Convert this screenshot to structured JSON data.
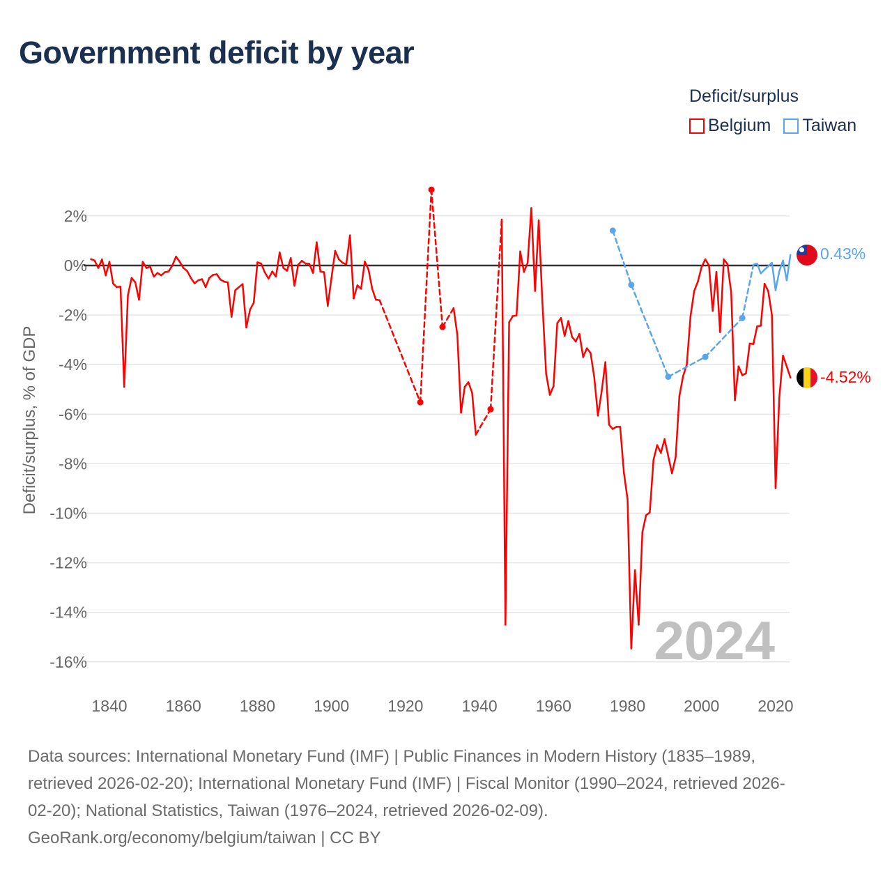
{
  "title": "Government deficit by year",
  "legend": {
    "title": "Deficit/surplus",
    "items": [
      {
        "label": "Belgium",
        "color": "#ff0000"
      },
      {
        "label": "Taiwan",
        "color": "#5aa5ec"
      }
    ]
  },
  "sources": [
    "Data sources: International Monetary Fund (IMF) | Public Finances in Modern History (1835–1989,",
    "retrieved 2026-02-20); International Monetary Fund (IMF) | Fiscal Monitor (1990–2024, retrieved 2026-",
    "02-20); National Statistics, Taiwan (1976–2024, retrieved 2026-02-09).",
    "GeoRank.org/economy/belgium/taiwan | CC BY"
  ],
  "chart_data": {
    "type": "line",
    "title": "Government deficit by year",
    "xlabel": "",
    "ylabel": "Deficit/surplus, % of GDP",
    "xlim": [
      1834.5,
      2028
    ],
    "ylim": [
      -17,
      3.5
    ],
    "x_ticks": [
      1840,
      1860,
      1880,
      1900,
      1920,
      1940,
      1960,
      1980,
      2000,
      2020
    ],
    "y_ticks": [
      2,
      0,
      -2,
      -4,
      -6,
      -8,
      -10,
      -12,
      -14,
      -16
    ],
    "y_tick_labels": [
      "2%",
      "0%",
      "-2%",
      "-4%",
      "-6%",
      "-8%",
      "-10%",
      "-12%",
      "-14%",
      "-16%"
    ],
    "x_tick_labels": [
      "1840",
      "1860",
      "1880",
      "1900",
      "1920",
      "1940",
      "1960",
      "1980",
      "2000",
      "2020"
    ],
    "grid": true,
    "year_watermark": "2024",
    "series": [
      {
        "name": "Belgium",
        "color": "#ff0000",
        "end_label": "-4.52%",
        "points": [
          [
            1835,
            0.26
          ],
          [
            1836,
            0.2
          ],
          [
            1837,
            -0.1
          ],
          [
            1838,
            0.25
          ],
          [
            1839,
            -0.4
          ],
          [
            1840,
            0.15
          ],
          [
            1841,
            -0.73
          ],
          [
            1842,
            -0.87
          ],
          [
            1843,
            -0.85
          ],
          [
            1844,
            -4.9
          ],
          [
            1845,
            -1.2
          ],
          [
            1846,
            -0.5
          ],
          [
            1847,
            -0.68
          ],
          [
            1848,
            -1.38
          ],
          [
            1849,
            0.15
          ],
          [
            1850,
            -0.1
          ],
          [
            1851,
            -0.05
          ],
          [
            1852,
            -0.45
          ],
          [
            1853,
            -0.3
          ],
          [
            1854,
            -0.4
          ],
          [
            1855,
            -0.27
          ],
          [
            1856,
            -0.24
          ],
          [
            1857,
            0
          ],
          [
            1858,
            0.36
          ],
          [
            1859,
            0.15
          ],
          [
            1860,
            -0.1
          ],
          [
            1861,
            -0.22
          ],
          [
            1862,
            -0.5
          ],
          [
            1863,
            -0.72
          ],
          [
            1864,
            -0.6
          ],
          [
            1865,
            -0.55
          ],
          [
            1866,
            -0.87
          ],
          [
            1867,
            -0.5
          ],
          [
            1868,
            -0.38
          ],
          [
            1869,
            -0.35
          ],
          [
            1870,
            -0.57
          ],
          [
            1871,
            -0.65
          ],
          [
            1872,
            -0.68
          ],
          [
            1873,
            -2.07
          ],
          [
            1874,
            -1.0
          ],
          [
            1875,
            -0.87
          ],
          [
            1876,
            -0.75
          ],
          [
            1877,
            -2.5
          ],
          [
            1878,
            -1.78
          ],
          [
            1879,
            -1.5
          ],
          [
            1880,
            0.13
          ],
          [
            1881,
            0.08
          ],
          [
            1882,
            -0.28
          ],
          [
            1883,
            -0.53
          ],
          [
            1884,
            -0.24
          ],
          [
            1885,
            -0.45
          ],
          [
            1886,
            0.53
          ],
          [
            1887,
            -0.1
          ],
          [
            1888,
            -0.21
          ],
          [
            1889,
            0.3
          ],
          [
            1890,
            -0.82
          ],
          [
            1891,
            0.03
          ],
          [
            1892,
            0.19
          ],
          [
            1893,
            0.08
          ],
          [
            1894,
            0.07
          ],
          [
            1895,
            -0.3
          ],
          [
            1896,
            0.94
          ],
          [
            1897,
            -0.24
          ],
          [
            1898,
            -0.27
          ],
          [
            1899,
            -1.63
          ],
          [
            1900,
            -0.5
          ],
          [
            1901,
            0.59
          ],
          [
            1902,
            0.25
          ],
          [
            1903,
            0.11
          ],
          [
            1904,
            0.05
          ],
          [
            1905,
            1.22
          ],
          [
            1906,
            -1.33
          ],
          [
            1907,
            -0.8
          ],
          [
            1908,
            -0.94
          ],
          [
            1909,
            0.16
          ],
          [
            1910,
            -0.16
          ],
          [
            1911,
            -0.94
          ],
          [
            1912,
            -1.38
          ],
          [
            1913,
            -1.4
          ],
          [
            1924,
            -5.52
          ],
          [
            1927,
            3.06
          ],
          [
            1930,
            -2.48
          ],
          [
            1933,
            -1.72
          ],
          [
            1934,
            -2.79
          ],
          [
            1935,
            -5.94
          ],
          [
            1936,
            -4.9
          ],
          [
            1937,
            -4.71
          ],
          [
            1938,
            -5.14
          ],
          [
            1939,
            -6.83
          ],
          [
            1943,
            -5.8
          ],
          [
            1946,
            1.86
          ],
          [
            1947,
            -14.5
          ],
          [
            1948,
            -2.29
          ],
          [
            1949,
            -2.04
          ],
          [
            1950,
            -2.02
          ],
          [
            1951,
            0.57
          ],
          [
            1952,
            -0.26
          ],
          [
            1953,
            0.11
          ],
          [
            1954,
            2.32
          ],
          [
            1955,
            -1.03
          ],
          [
            1956,
            1.82
          ],
          [
            1957,
            -1.53
          ],
          [
            1958,
            -4.37
          ],
          [
            1959,
            -5.22
          ],
          [
            1960,
            -4.87
          ],
          [
            1961,
            -2.33
          ],
          [
            1962,
            -2.12
          ],
          [
            1963,
            -2.84
          ],
          [
            1964,
            -2.24
          ],
          [
            1965,
            -2.88
          ],
          [
            1966,
            -3.07
          ],
          [
            1967,
            -2.76
          ],
          [
            1968,
            -3.7
          ],
          [
            1969,
            -3.34
          ],
          [
            1970,
            -3.53
          ],
          [
            1971,
            -4.51
          ],
          [
            1972,
            -6.06
          ],
          [
            1973,
            -5.08
          ],
          [
            1974,
            -3.9
          ],
          [
            1975,
            -6.43
          ],
          [
            1976,
            -6.6
          ],
          [
            1977,
            -6.51
          ],
          [
            1978,
            -6.51
          ],
          [
            1979,
            -8.35
          ],
          [
            1980,
            -9.44
          ],
          [
            1981,
            -15.46
          ],
          [
            1982,
            -12.3
          ],
          [
            1983,
            -14.5
          ],
          [
            1984,
            -10.77
          ],
          [
            1985,
            -10.08
          ],
          [
            1986,
            -9.97
          ],
          [
            1987,
            -7.85
          ],
          [
            1988,
            -7.25
          ],
          [
            1989,
            -7.56
          ],
          [
            1990,
            -7.01
          ],
          [
            1991,
            -7.7
          ],
          [
            1992,
            -8.39
          ],
          [
            1993,
            -7.73
          ],
          [
            1994,
            -5.27
          ],
          [
            1995,
            -4.47
          ],
          [
            1996,
            -4.0
          ],
          [
            1997,
            -2.06
          ],
          [
            1998,
            -1.03
          ],
          [
            1999,
            -0.65
          ],
          [
            2000,
            -0.06
          ],
          [
            2001,
            0.25
          ],
          [
            2002,
            0
          ],
          [
            2003,
            -1.83
          ],
          [
            2004,
            -0.26
          ],
          [
            2005,
            -2.69
          ],
          [
            2006,
            0.25
          ],
          [
            2007,
            0.06
          ],
          [
            2008,
            -1.09
          ],
          [
            2009,
            -5.44
          ],
          [
            2010,
            -4.07
          ],
          [
            2011,
            -4.43
          ],
          [
            2012,
            -4.35
          ],
          [
            2013,
            -3.15
          ],
          [
            2014,
            -3.17
          ],
          [
            2015,
            -2.46
          ],
          [
            2016,
            -2.43
          ],
          [
            2017,
            -0.74
          ],
          [
            2018,
            -1.03
          ],
          [
            2019,
            -2.0
          ],
          [
            2020,
            -8.99
          ],
          [
            2021,
            -5.33
          ],
          [
            2022,
            -3.64
          ],
          [
            2023,
            -4.07
          ],
          [
            2024,
            -4.52
          ]
        ]
      },
      {
        "name": "Taiwan",
        "color": "#5aa5ec",
        "end_label": "0.43%",
        "points": [
          [
            1976,
            1.41
          ],
          [
            1981,
            -0.78
          ],
          [
            1991,
            -4.49
          ],
          [
            2001,
            -3.69
          ],
          [
            2011,
            -2.12
          ],
          [
            2014,
            0.03
          ],
          [
            2015,
            0.08
          ],
          [
            2016,
            -0.32
          ],
          [
            2017,
            -0.17
          ],
          [
            2018,
            -0.03
          ],
          [
            2019,
            0.11
          ],
          [
            2020,
            -1.0
          ],
          [
            2021,
            -0.23
          ],
          [
            2022,
            0.2
          ],
          [
            2023,
            -0.6
          ],
          [
            2024,
            0.43
          ]
        ]
      }
    ]
  }
}
